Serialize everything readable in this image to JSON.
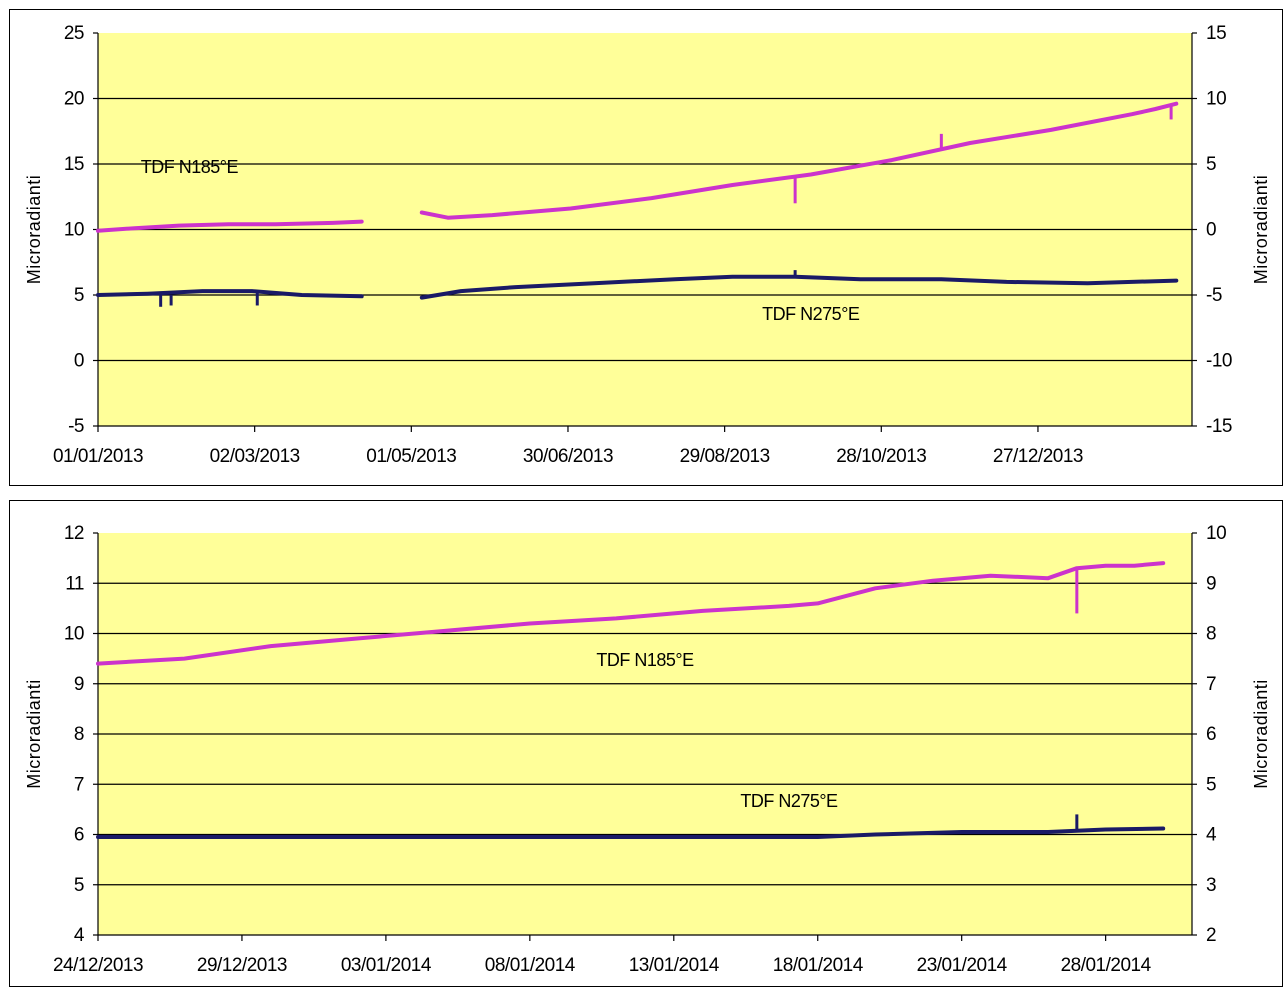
{
  "colors": {
    "plot_bg": "#ffff99",
    "gridline": "#000000",
    "series_n185": "#cc33cc",
    "series_n275": "#1a1a66"
  },
  "chart_data": [
    {
      "type": "line",
      "title": "",
      "xlabel": "",
      "ylabel": "Microradianti",
      "ylabel_right": "Microradianti",
      "x_axis_type": "date",
      "xlim": [
        "2013-01-01",
        "2014-02-24"
      ],
      "x_tick_labels": [
        "01/01/2013",
        "02/03/2013",
        "01/05/2013",
        "30/06/2013",
        "29/08/2013",
        "28/10/2013",
        "27/12/2013"
      ],
      "ylim": [
        -5,
        25
      ],
      "y_ticks": [
        -5,
        0,
        5,
        10,
        15,
        20,
        25
      ],
      "y_tick_labels": [
        "-5",
        "0",
        "5",
        "10",
        "15",
        "20",
        "25"
      ],
      "ylim_right": [
        -15,
        15
      ],
      "y_ticks_right": [
        -15,
        -10,
        -5,
        0,
        5,
        10,
        15
      ],
      "y_tick_labels_right": [
        "-15",
        "-10",
        "-5",
        "0",
        "5",
        "10",
        "15"
      ],
      "grid": "horizontal",
      "legend": "none",
      "series": [
        {
          "name": "TDF N185°E",
          "label_near": [
            "2013-02-05",
            14.3
          ],
          "axis": "left",
          "color": "#cc33cc",
          "segments": [
            [
              [
                "2013-01-01",
                9.9
              ],
              [
                "2013-01-15",
                10.1
              ],
              [
                "2013-02-01",
                10.3
              ],
              [
                "2013-02-20",
                10.4
              ],
              [
                "2013-03-10",
                10.4
              ],
              [
                "2013-04-01",
                10.5
              ],
              [
                "2013-04-12",
                10.6
              ]
            ],
            [
              [
                "2013-05-05",
                11.3
              ],
              [
                "2013-05-15",
                10.9
              ],
              [
                "2013-06-01",
                11.1
              ],
              [
                "2013-07-01",
                11.6
              ],
              [
                "2013-08-01",
                12.4
              ],
              [
                "2013-09-01",
                13.4
              ],
              [
                "2013-10-01",
                14.2
              ],
              [
                "2013-11-01",
                15.3
              ],
              [
                "2013-12-01",
                16.6
              ],
              [
                "2014-01-01",
                17.6
              ],
              [
                "2014-02-01",
                18.8
              ],
              [
                "2014-02-10",
                19.2
              ],
              [
                "2014-02-18",
                19.6
              ]
            ]
          ],
          "spikes": [
            [
              "2013-09-25",
              14.0,
              12.0
            ],
            [
              "2013-11-20",
              16.0,
              17.3
            ],
            [
              "2014-02-16",
              19.4,
              18.4
            ]
          ]
        },
        {
          "name": "TDF N275°E",
          "label_near": [
            "2013-10-01",
            3.1
          ],
          "axis": "left",
          "color": "#1a1a66",
          "segments": [
            [
              [
                "2013-01-01",
                5.0
              ],
              [
                "2013-01-20",
                5.1
              ],
              [
                "2013-02-10",
                5.3
              ],
              [
                "2013-03-01",
                5.3
              ],
              [
                "2013-03-20",
                5.0
              ],
              [
                "2013-04-12",
                4.9
              ]
            ],
            [
              [
                "2013-05-05",
                4.8
              ],
              [
                "2013-05-20",
                5.3
              ],
              [
                "2013-06-10",
                5.6
              ],
              [
                "2013-07-10",
                5.9
              ],
              [
                "2013-08-10",
                6.2
              ],
              [
                "2013-09-01",
                6.4
              ],
              [
                "2013-09-25",
                6.4
              ],
              [
                "2013-10-20",
                6.2
              ],
              [
                "2013-11-20",
                6.2
              ],
              [
                "2013-12-15",
                6.0
              ],
              [
                "2014-01-15",
                5.9
              ],
              [
                "2014-02-18",
                6.1
              ]
            ]
          ],
          "spikes": [
            [
              "2013-01-25",
              5.0,
              4.1
            ],
            [
              "2013-01-29",
              5.0,
              4.2
            ],
            [
              "2013-03-03",
              5.2,
              4.2
            ],
            [
              "2013-09-25",
              6.4,
              6.9
            ]
          ]
        }
      ]
    },
    {
      "type": "line",
      "title": "",
      "xlabel": "",
      "ylabel": "Microradianti",
      "ylabel_right": "Microradianti",
      "x_axis_type": "date",
      "xlim": [
        "2013-12-24",
        "2014-01-31"
      ],
      "x_tick_labels": [
        "24/12/2013",
        "29/12/2013",
        "03/01/2014",
        "08/01/2014",
        "13/01/2014",
        "18/01/2014",
        "23/01/2014",
        "28/01/2014"
      ],
      "ylim": [
        4,
        12
      ],
      "y_ticks": [
        4,
        5,
        6,
        7,
        8,
        9,
        10,
        11,
        12
      ],
      "y_tick_labels": [
        "4",
        "5",
        "6",
        "7",
        "8",
        "9",
        "10",
        "11",
        "12"
      ],
      "ylim_right": [
        2,
        10
      ],
      "y_ticks_right": [
        2,
        3,
        4,
        5,
        6,
        7,
        8,
        9,
        10
      ],
      "y_tick_labels_right": [
        "2",
        "3",
        "4",
        "5",
        "6",
        "7",
        "8",
        "9",
        "10"
      ],
      "grid": "horizontal",
      "legend": "none",
      "series": [
        {
          "name": "TDF N185°E",
          "label_near": [
            "2014-01-12",
            9.35
          ],
          "axis": "left",
          "color": "#cc33cc",
          "segments": [
            [
              [
                "2013-12-24",
                9.4
              ],
              [
                "2013-12-27",
                9.5
              ],
              [
                "2013-12-30",
                9.75
              ],
              [
                "2014-01-02",
                9.9
              ],
              [
                "2014-01-05",
                10.05
              ],
              [
                "2014-01-08",
                10.2
              ],
              [
                "2014-01-11",
                10.3
              ],
              [
                "2014-01-14",
                10.45
              ],
              [
                "2014-01-17",
                10.55
              ],
              [
                "2014-01-18",
                10.6
              ],
              [
                "2014-01-20",
                10.9
              ],
              [
                "2014-01-22",
                11.05
              ],
              [
                "2014-01-24",
                11.15
              ],
              [
                "2014-01-26",
                11.1
              ],
              [
                "2014-01-27",
                11.3
              ],
              [
                "2014-01-28",
                11.35
              ],
              [
                "2014-01-29",
                11.35
              ],
              [
                "2014-01-30",
                11.4
              ]
            ]
          ],
          "spikes": [
            [
              "2014-01-27",
              11.3,
              10.4
            ]
          ]
        },
        {
          "name": "TDF N275°E",
          "label_near": [
            "2014-01-17",
            6.55
          ],
          "axis": "left",
          "color": "#1a1a66",
          "segments": [
            [
              [
                "2013-12-24",
                5.95
              ],
              [
                "2013-12-30",
                5.95
              ],
              [
                "2014-01-05",
                5.95
              ],
              [
                "2014-01-10",
                5.95
              ],
              [
                "2014-01-15",
                5.95
              ],
              [
                "2014-01-18",
                5.95
              ],
              [
                "2014-01-20",
                6.0
              ],
              [
                "2014-01-23",
                6.05
              ],
              [
                "2014-01-26",
                6.05
              ],
              [
                "2014-01-28",
                6.1
              ],
              [
                "2014-01-30",
                6.12
              ]
            ]
          ],
          "spikes": [
            [
              "2014-01-27",
              6.1,
              6.4
            ]
          ]
        }
      ]
    }
  ]
}
